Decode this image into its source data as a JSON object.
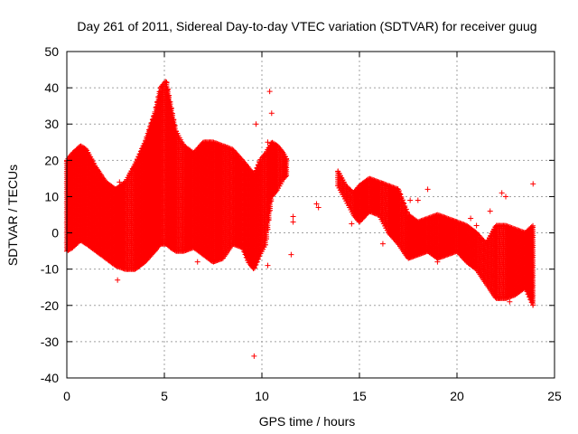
{
  "chart_data": {
    "type": "scatter",
    "title": "Day 261 of 2011, Sidereal Day-to-day VTEC variation (SDTVAR) for receiver guug",
    "xlabel": "GPS time / hours",
    "ylabel": "SDTVAR / TECUs",
    "xlim": [
      0,
      25
    ],
    "ylim": [
      -40,
      50
    ],
    "x_ticks": [
      0,
      5,
      10,
      15,
      20,
      25
    ],
    "y_ticks": [
      -40,
      -30,
      -20,
      -10,
      0,
      10,
      20,
      30,
      40,
      50
    ],
    "grid": true,
    "marker": "+",
    "series_color": "#ff0000",
    "band": {
      "x": [
        0,
        0.3,
        0.7,
        1.0,
        1.5,
        2.0,
        2.5,
        3.0,
        3.5,
        4.0,
        4.5,
        4.8,
        5.1,
        5.3,
        5.6,
        6.0,
        6.5,
        7.0,
        7.5,
        8.0,
        8.5,
        9.0,
        9.3,
        9.6,
        9.9,
        10.2,
        10.5,
        10.8,
        11.1,
        11.3
      ],
      "upper": [
        20,
        22,
        24,
        23,
        18,
        14,
        12,
        14,
        19,
        25,
        33,
        40,
        42,
        36,
        28,
        24,
        22,
        25,
        25,
        24,
        23,
        20,
        18,
        16,
        20,
        22,
        25,
        24,
        22,
        20
      ],
      "lower": [
        -5,
        -4,
        -2,
        -3,
        -5,
        -7,
        -9,
        -10,
        -10,
        -8,
        -5,
        -3,
        -3,
        -4,
        -5,
        -5,
        -4,
        -6,
        -8,
        -7,
        -3,
        -4,
        -8,
        -10,
        -6,
        -3,
        10,
        12,
        15,
        16
      ]
    },
    "band2": {
      "x": [
        13.9,
        14.3,
        14.7,
        15.0,
        15.5,
        16.0,
        16.5,
        17.0,
        17.5,
        18.0,
        18.5,
        19.0,
        19.5,
        20.0,
        20.5,
        21.0,
        21.5,
        22.0,
        22.5,
        23.0,
        23.5,
        23.9
      ],
      "upper": [
        17,
        13,
        11,
        13,
        15,
        14,
        13,
        12,
        5,
        3,
        4,
        5,
        4,
        3,
        2,
        0,
        -3,
        2,
        2,
        1,
        0,
        2
      ],
      "lower": [
        13,
        9,
        5,
        3,
        6,
        5,
        0,
        -3,
        -7,
        -6,
        -5,
        -7,
        -6,
        -5,
        -8,
        -10,
        -14,
        -18,
        -18,
        -17,
        -15,
        -20
      ]
    },
    "outliers": [
      {
        "x": 9.6,
        "y": -34
      },
      {
        "x": 10.4,
        "y": 39
      },
      {
        "x": 9.7,
        "y": 30
      },
      {
        "x": 10.3,
        "y": 25
      },
      {
        "x": 10.5,
        "y": 33
      },
      {
        "x": 11.5,
        "y": -6
      },
      {
        "x": 11.6,
        "y": 3
      },
      {
        "x": 11.6,
        "y": 4.5
      },
      {
        "x": 10.3,
        "y": -9
      },
      {
        "x": 6.7,
        "y": -8
      },
      {
        "x": 6.7,
        "y": -3.5
      },
      {
        "x": 7.1,
        "y": -4
      },
      {
        "x": 2.6,
        "y": -13
      },
      {
        "x": 2.5,
        "y": 10
      },
      {
        "x": 2.7,
        "y": 14
      },
      {
        "x": 8.6,
        "y": 14
      },
      {
        "x": 22.1,
        "y": -18
      },
      {
        "x": 22.7,
        "y": -19
      },
      {
        "x": 22.3,
        "y": 11
      },
      {
        "x": 22.5,
        "y": 10
      },
      {
        "x": 23.9,
        "y": 13.5
      },
      {
        "x": 21.7,
        "y": 6
      },
      {
        "x": 19.0,
        "y": -8
      },
      {
        "x": 20.7,
        "y": 4
      },
      {
        "x": 17.6,
        "y": 9
      },
      {
        "x": 18.5,
        "y": 12
      },
      {
        "x": 18.0,
        "y": 9
      },
      {
        "x": 14.6,
        "y": 2.5
      },
      {
        "x": 16.2,
        "y": -3
      },
      {
        "x": 21.0,
        "y": 2
      },
      {
        "x": 21.8,
        "y": -12
      },
      {
        "x": 23.2,
        "y": -10
      },
      {
        "x": 0.1,
        "y": -3
      },
      {
        "x": 6.2,
        "y": 3
      },
      {
        "x": 12.9,
        "y": 7
      },
      {
        "x": 12.8,
        "y": 8
      },
      {
        "x": 4.8,
        "y": 11
      },
      {
        "x": 3.0,
        "y": 2
      }
    ]
  }
}
